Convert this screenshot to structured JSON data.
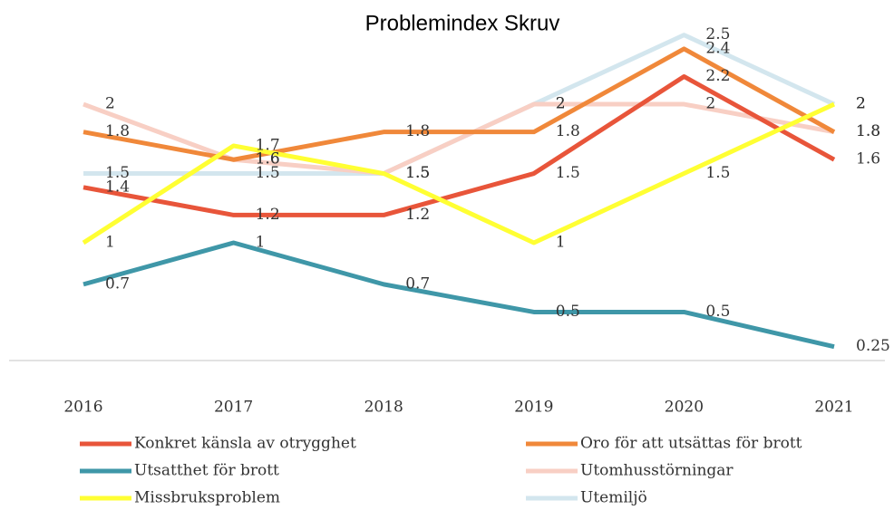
{
  "chart_data": {
    "type": "line",
    "title": "Problemindex Skruv",
    "categories": [
      "2016",
      "2017",
      "2018",
      "2019",
      "2020",
      "2021"
    ],
    "series": [
      {
        "name": "Konkret känsla av otrygghet",
        "color": "#e8553a",
        "values": [
          1.4,
          1.2,
          1.2,
          1.5,
          2.2,
          1.6
        ]
      },
      {
        "name": "Oro för att utsättas för brott",
        "color": "#f0883a",
        "values": [
          1.8,
          1.6,
          1.8,
          1.8,
          2.4,
          1.8
        ]
      },
      {
        "name": "Utsatthet för brott",
        "color": "#3f97a8",
        "values": [
          0.7,
          1,
          0.7,
          0.5,
          0.5,
          0.25
        ]
      },
      {
        "name": "Utomhusstörningar",
        "color": "#f8cfc4",
        "values": [
          2,
          1.6,
          1.5,
          2,
          2,
          1.8
        ]
      },
      {
        "name": "Missbruksproblem",
        "color": "#ffff33",
        "values": [
          1,
          1.7,
          1.5,
          1,
          1.5,
          2
        ]
      },
      {
        "name": "Utemiljö",
        "color": "#d3e6ee",
        "values": [
          1.5,
          1.5,
          1.5,
          2,
          2.5,
          2
        ]
      }
    ],
    "ylim": [
      0.15,
      2.7
    ]
  }
}
